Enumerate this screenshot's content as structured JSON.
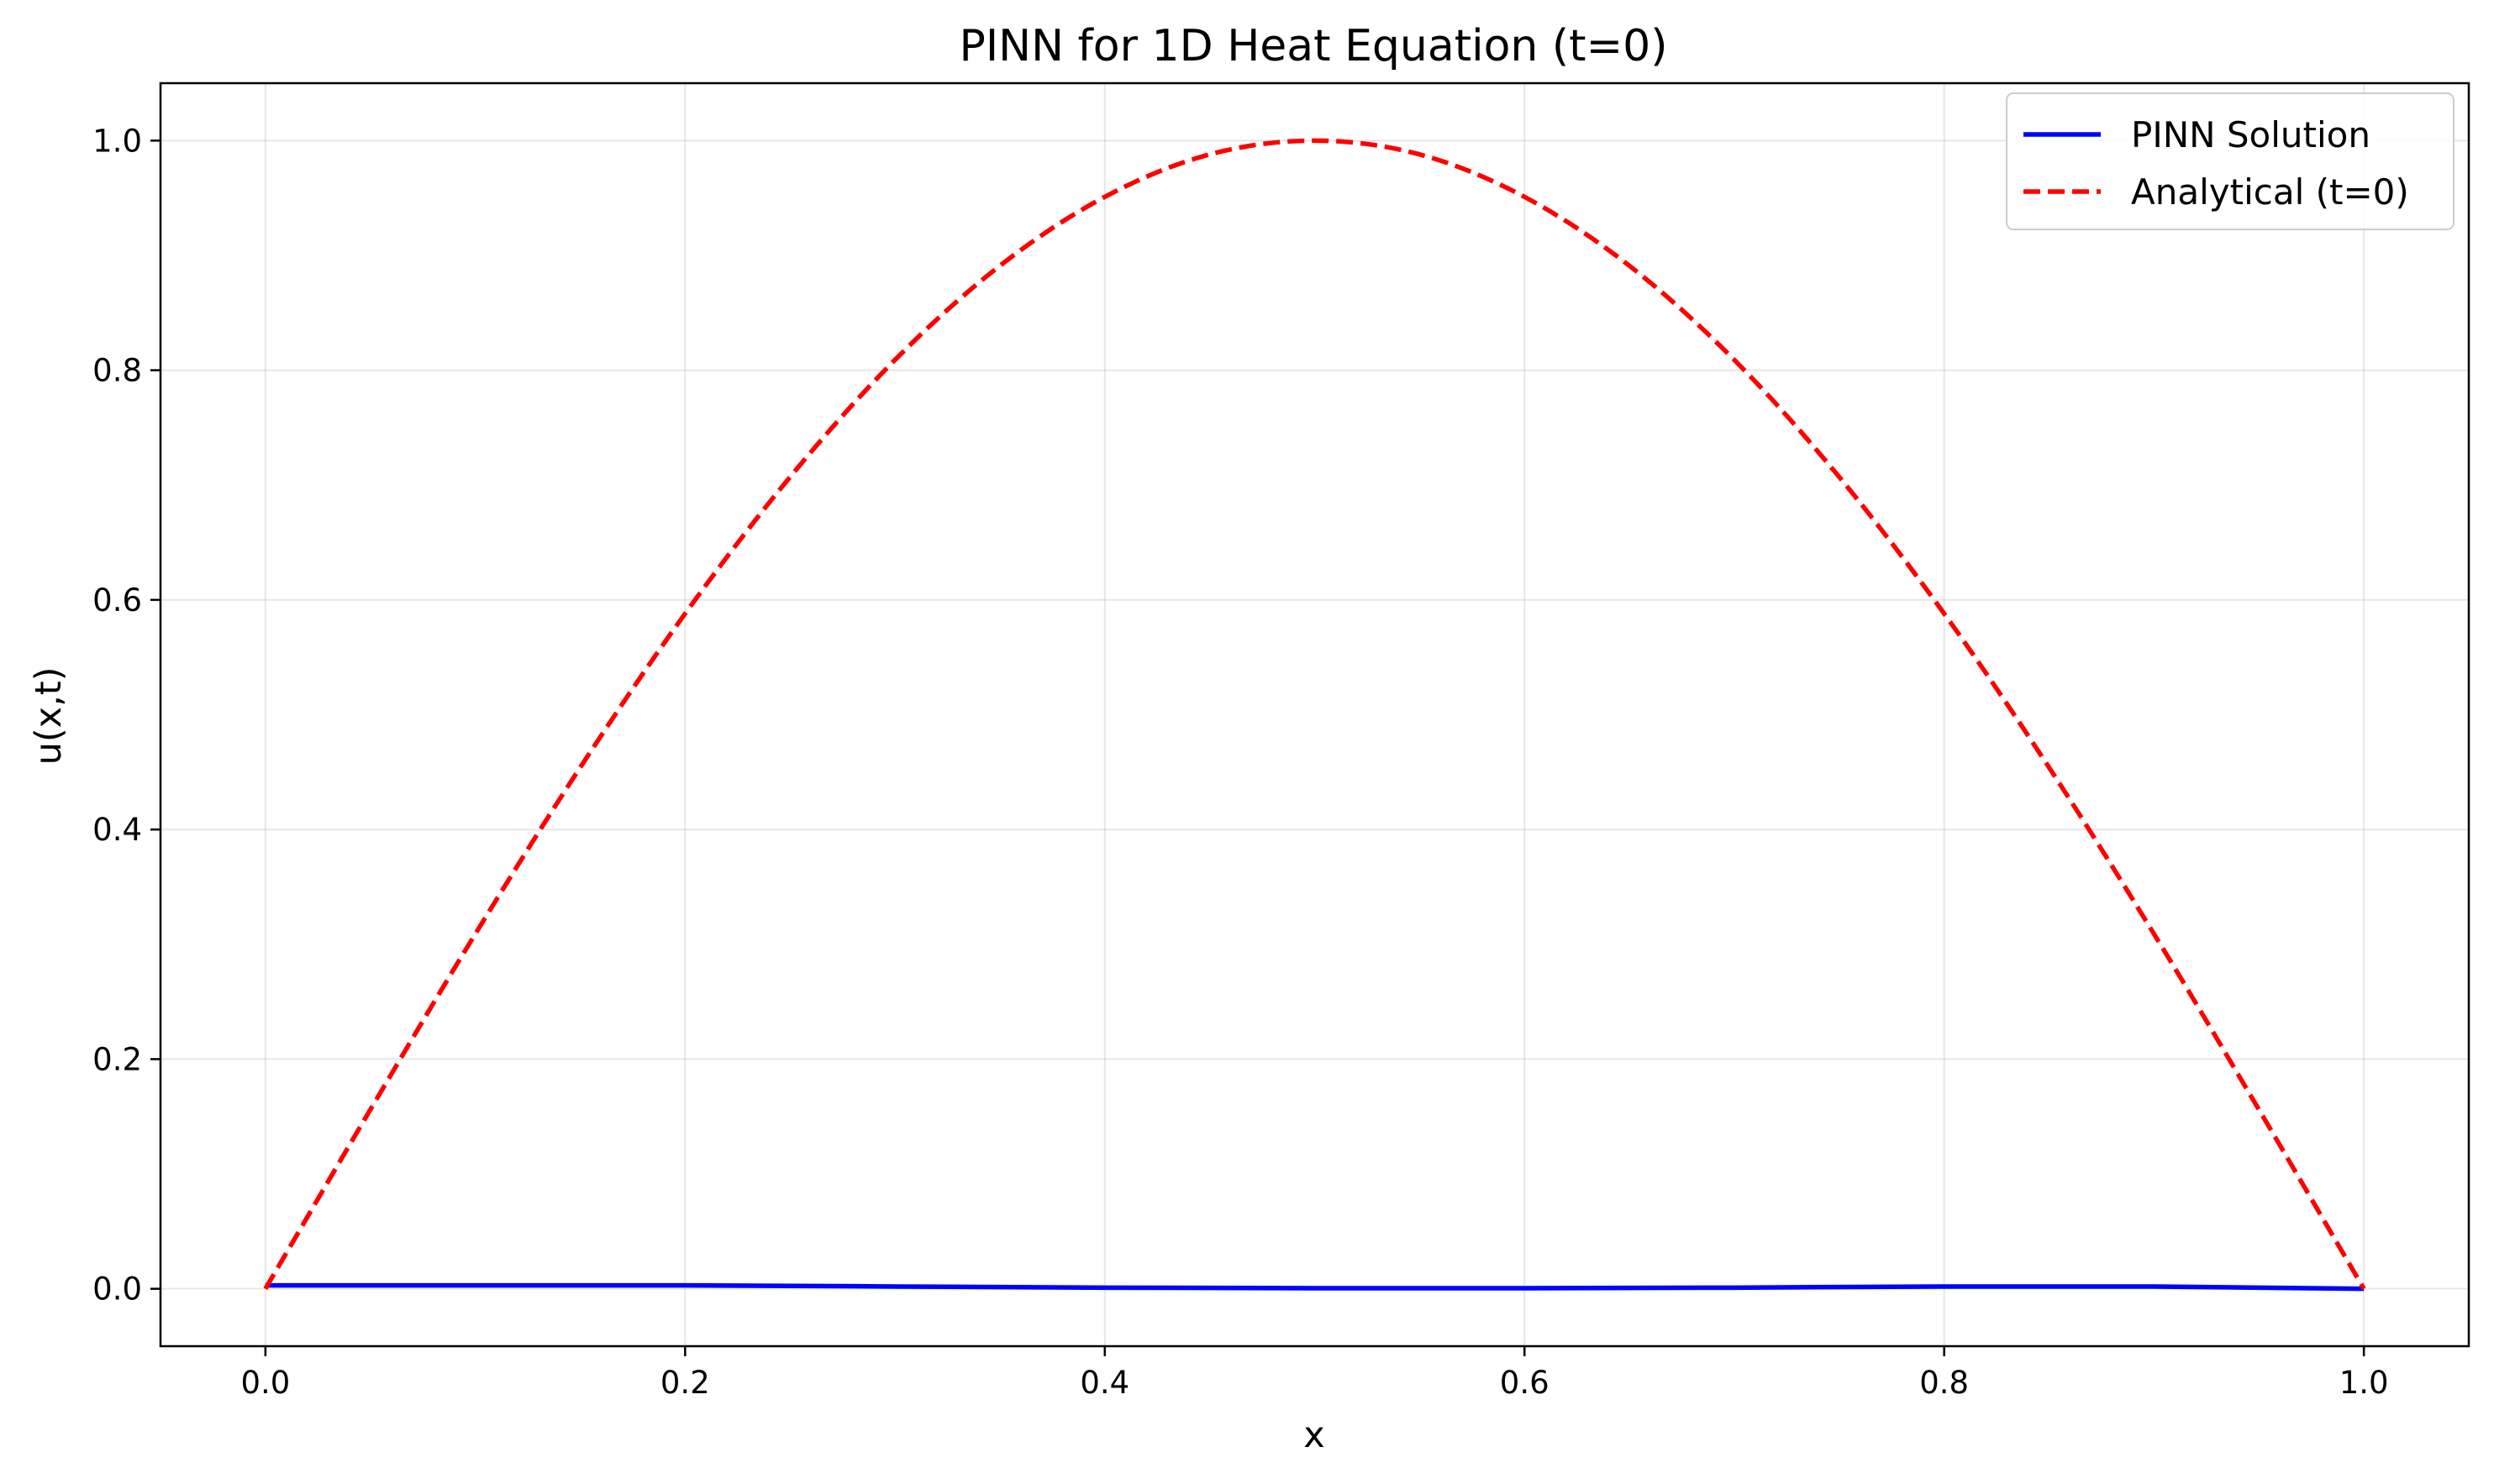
{
  "chart_data": {
    "type": "line",
    "title": "PINN for 1D Heat Equation (t=0)",
    "xlabel": "x",
    "ylabel": "u(x,t)",
    "xlim": [
      -0.05,
      1.05
    ],
    "ylim": [
      -0.05,
      1.05
    ],
    "xticks": [
      0.0,
      0.2,
      0.4,
      0.6,
      0.8,
      1.0
    ],
    "xtick_labels": [
      "0.0",
      "0.2",
      "0.4",
      "0.6",
      "0.8",
      "1.0"
    ],
    "yticks": [
      0.0,
      0.2,
      0.4,
      0.6,
      0.8,
      1.0
    ],
    "ytick_labels": [
      "0.0",
      "0.2",
      "0.4",
      "0.6",
      "0.8",
      "1.0"
    ],
    "grid": true,
    "legend_position": "top-right",
    "series": [
      {
        "name": "PINN Solution",
        "color": "#0000ff",
        "style": "solid",
        "x": [
          0.0,
          0.1,
          0.2,
          0.3,
          0.4,
          0.5,
          0.6,
          0.7,
          0.8,
          0.9,
          1.0
        ],
        "y": [
          0.003,
          0.003,
          0.003,
          0.002,
          0.001,
          0.0005,
          0.0005,
          0.001,
          0.002,
          0.002,
          0.0
        ]
      },
      {
        "name": "Analytical (t=0)",
        "color": "#ff0000",
        "style": "dashed",
        "x": [
          0.0,
          0.05,
          0.1,
          0.15,
          0.2,
          0.25,
          0.3,
          0.35,
          0.4,
          0.45,
          0.5,
          0.55,
          0.6,
          0.65,
          0.7,
          0.75,
          0.8,
          0.85,
          0.9,
          0.95,
          1.0
        ],
        "y": [
          0.0,
          0.156,
          0.309,
          0.454,
          0.588,
          0.707,
          0.809,
          0.891,
          0.951,
          0.988,
          1.0,
          0.988,
          0.951,
          0.891,
          0.809,
          0.707,
          0.588,
          0.454,
          0.309,
          0.156,
          0.0
        ]
      }
    ]
  }
}
